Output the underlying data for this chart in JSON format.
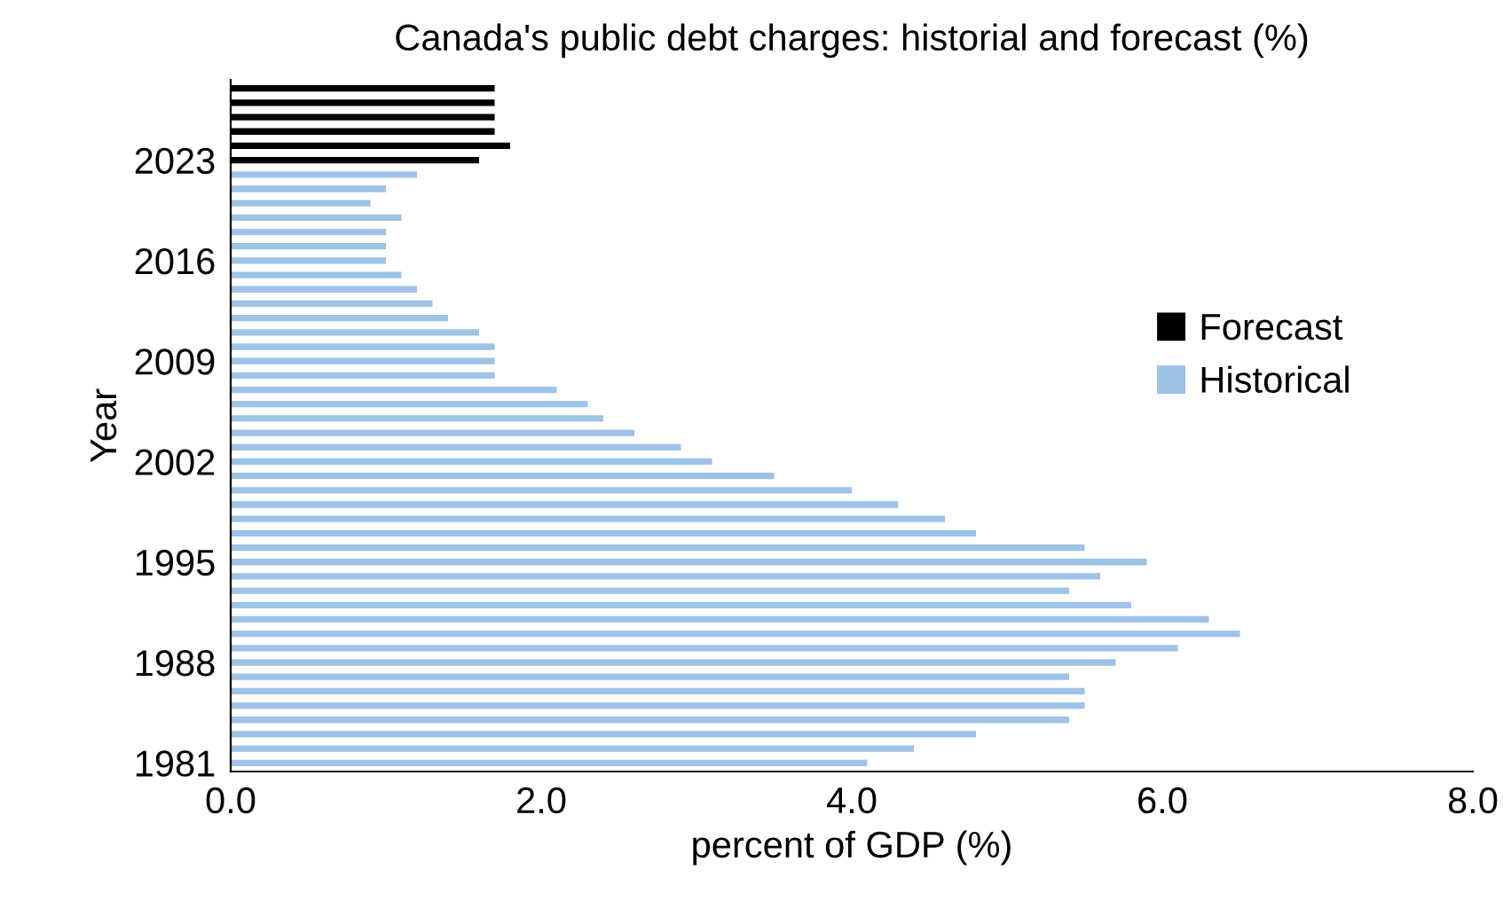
{
  "chart_data": {
    "type": "bar",
    "orientation": "horizontal",
    "title": "Canada's public debt charges: historial and forecast (%)",
    "xlabel": "percent of GDP (%)",
    "ylabel": "Year",
    "categories": [
      null,
      null,
      null,
      null,
      null,
      "2023",
      null,
      null,
      null,
      null,
      null,
      null,
      "2016",
      null,
      null,
      null,
      null,
      null,
      null,
      "2009",
      null,
      null,
      null,
      null,
      null,
      null,
      "2002",
      null,
      null,
      null,
      null,
      null,
      null,
      "1995",
      null,
      null,
      null,
      null,
      null,
      null,
      "1988",
      null,
      null,
      null,
      null,
      null,
      null,
      "1981"
    ],
    "series": [
      {
        "name": "Forecast",
        "color": "#000000",
        "values": [
          1.7,
          1.7,
          1.7,
          1.7,
          1.8,
          1.6,
          null,
          null,
          null,
          null,
          null,
          null,
          null,
          null,
          null,
          null,
          null,
          null,
          null,
          null,
          null,
          null,
          null,
          null,
          null,
          null,
          null,
          null,
          null,
          null,
          null,
          null,
          null,
          null,
          null,
          null,
          null,
          null,
          null,
          null,
          null,
          null,
          null,
          null,
          null,
          null,
          null,
          null
        ]
      },
      {
        "name": "Historical",
        "color": "#9dc3e6",
        "values": [
          null,
          null,
          null,
          null,
          null,
          null,
          1.2,
          1.0,
          0.9,
          1.1,
          1.0,
          1.0,
          1.0,
          1.1,
          1.2,
          1.3,
          1.4,
          1.6,
          1.7,
          1.7,
          1.7,
          2.1,
          2.3,
          2.4,
          2.6,
          2.9,
          3.1,
          3.5,
          4.0,
          4.3,
          4.6,
          4.8,
          5.5,
          5.9,
          5.6,
          5.4,
          5.8,
          6.3,
          6.5,
          6.1,
          5.7,
          5.4,
          5.5,
          5.5,
          5.4,
          4.8,
          4.4,
          4.1
        ]
      }
    ],
    "xlim": [
      0,
      8
    ],
    "xticks": [
      {
        "value": 0,
        "label": "0.0"
      },
      {
        "value": 2,
        "label": "2.0"
      },
      {
        "value": 4,
        "label": "4.0"
      },
      {
        "value": 6,
        "label": "6.0"
      },
      {
        "value": 8,
        "label": "8.0"
      }
    ],
    "grid": false,
    "legend": "right"
  }
}
